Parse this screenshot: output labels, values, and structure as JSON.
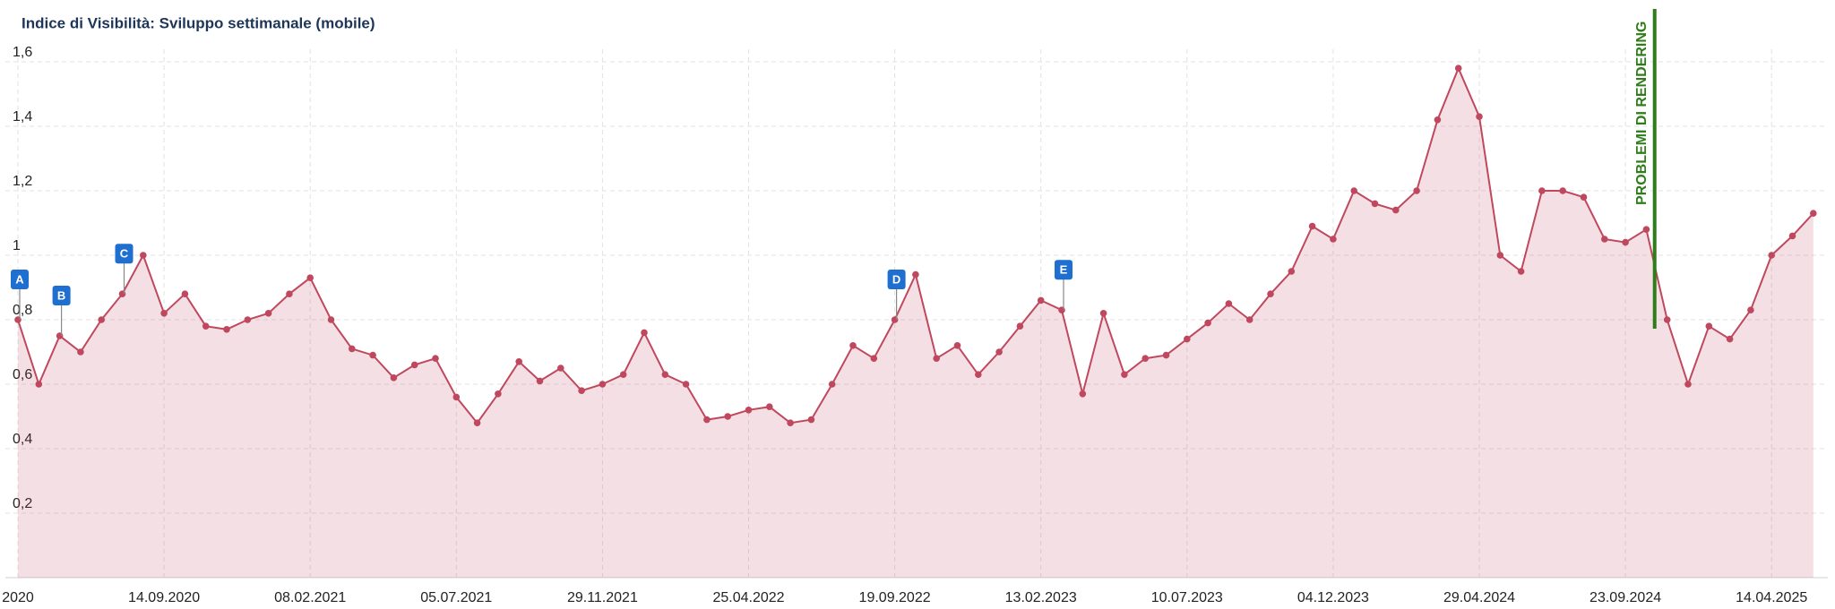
{
  "chart_data": {
    "type": "area",
    "title": "Indice di Visibilità: Sviluppo settimanale (mobile)",
    "categories": [
      "2020",
      null,
      null,
      null,
      null,
      null,
      null,
      "14.09.2020",
      null,
      null,
      null,
      null,
      null,
      null,
      "08.02.2021",
      null,
      null,
      null,
      null,
      null,
      null,
      "05.07.2021",
      null,
      null,
      null,
      null,
      null,
      null,
      "29.11.2021",
      null,
      null,
      null,
      null,
      null,
      null,
      "25.04.2022",
      null,
      null,
      null,
      null,
      null,
      null,
      "19.09.2022",
      null,
      null,
      null,
      null,
      null,
      null,
      "13.02.2023",
      null,
      null,
      null,
      null,
      null,
      null,
      "10.07.2023",
      null,
      null,
      null,
      null,
      null,
      null,
      "04.12.2023",
      null,
      null,
      null,
      null,
      null,
      null,
      "29.04.2024",
      null,
      null,
      null,
      null,
      null,
      null,
      "23.09.2024",
      null,
      null,
      null,
      null,
      null,
      null,
      "14.04.2025",
      null,
      null
    ],
    "values": [
      0.8,
      0.6,
      0.75,
      0.7,
      0.8,
      0.88,
      1.0,
      0.82,
      0.88,
      0.78,
      0.77,
      0.8,
      0.82,
      0.88,
      0.93,
      0.8,
      0.71,
      0.69,
      0.62,
      0.66,
      0.68,
      0.56,
      0.48,
      0.57,
      0.67,
      0.61,
      0.65,
      0.58,
      0.6,
      0.63,
      0.76,
      0.63,
      0.6,
      0.49,
      0.5,
      0.52,
      0.53,
      0.48,
      0.49,
      0.6,
      0.72,
      0.68,
      0.8,
      0.94,
      0.68,
      0.72,
      0.63,
      0.7,
      0.78,
      0.86,
      0.83,
      0.57,
      0.82,
      0.63,
      0.68,
      0.69,
      0.74,
      0.79,
      0.85,
      0.8,
      0.88,
      0.95,
      1.09,
      1.05,
      1.2,
      1.16,
      1.14,
      1.2,
      1.42,
      1.58,
      1.43,
      1.0,
      0.95,
      1.2,
      1.2,
      1.18,
      1.05,
      1.04,
      1.08,
      0.8,
      0.6,
      0.78,
      0.74,
      0.83,
      1.0,
      1.06,
      1.13
    ],
    "color": "#c0485e",
    "ylim": [
      0,
      1.6
    ],
    "yticks": [
      {
        "value": 0.2,
        "label": "0,2"
      },
      {
        "value": 0.4,
        "label": "0,4"
      },
      {
        "value": 0.6,
        "label": "0,6"
      },
      {
        "value": 0.8,
        "label": "0,8"
      },
      1,
      {
        "value": 1.2,
        "label": "1,2"
      },
      {
        "value": 1.4,
        "label": "1,4"
      },
      {
        "value": 1.6,
        "label": "1,6"
      }
    ],
    "grid": true,
    "annotations": [
      "A",
      "B",
      "C",
      "D",
      "E"
    ],
    "marker_line_label": "PROBLEMI DI RENDERING"
  }
}
